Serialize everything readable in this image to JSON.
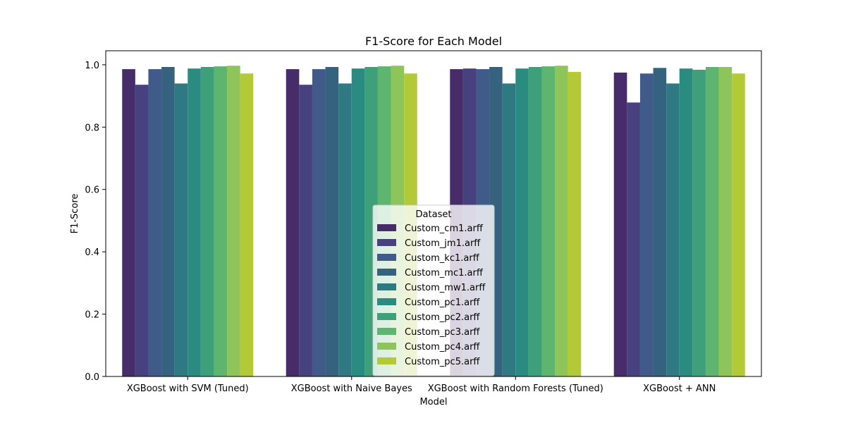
{
  "chart_data": {
    "type": "bar",
    "title": "F1-Score for Each Model",
    "xlabel": "Model",
    "ylabel": "F1-Score",
    "ylim": [
      0,
      1.045
    ],
    "yticks": [
      "0.0",
      "0.2",
      "0.4",
      "0.6",
      "0.8",
      "1.0"
    ],
    "grid": false,
    "legend": {
      "title": "Dataset",
      "placement": "lower-center"
    },
    "categories": [
      "XGBoost with SVM (Tuned)",
      "XGBoost with Naive Bayes",
      "XGBoost with Random Forests (Tuned)",
      "XGBoost + ANN"
    ],
    "series": [
      {
        "name": "Custom_cm1.arff",
        "color": "#472c6a",
        "values": [
          0.986,
          0.986,
          0.986,
          0.975
        ]
      },
      {
        "name": "Custom_jm1.arff",
        "color": "#48417f",
        "values": [
          0.936,
          0.936,
          0.988,
          0.879
        ]
      },
      {
        "name": "Custom_kc1.arff",
        "color": "#405a89",
        "values": [
          0.986,
          0.986,
          0.986,
          0.972
        ]
      },
      {
        "name": "Custom_mc1.arff",
        "color": "#35637f",
        "values": [
          0.993,
          0.993,
          0.993,
          0.99
        ]
      },
      {
        "name": "Custom_mw1.arff",
        "color": "#2f7a82",
        "values": [
          0.94,
          0.94,
          0.94,
          0.94
        ]
      },
      {
        "name": "Custom_pc1.arff",
        "color": "#2a8b80",
        "values": [
          0.988,
          0.988,
          0.988,
          0.988
        ]
      },
      {
        "name": "Custom_pc2.arff",
        "color": "#3ea07a",
        "values": [
          0.993,
          0.993,
          0.993,
          0.984
        ]
      },
      {
        "name": "Custom_pc3.arff",
        "color": "#5db56f",
        "values": [
          0.995,
          0.995,
          0.995,
          0.993
        ]
      },
      {
        "name": "Custom_pc4.arff",
        "color": "#8dc55a",
        "values": [
          0.997,
          0.997,
          0.997,
          0.993
        ]
      },
      {
        "name": "Custom_pc5.arff",
        "color": "#b3c935",
        "values": [
          0.972,
          0.972,
          0.977,
          0.972
        ]
      }
    ]
  }
}
